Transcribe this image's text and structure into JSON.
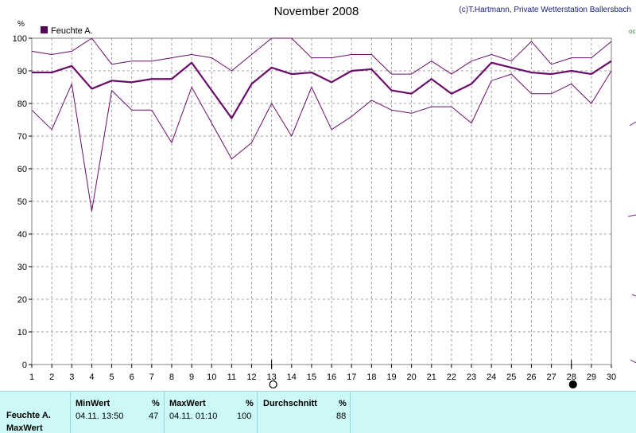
{
  "header": {
    "title": "November 2008",
    "copyright": "(c)T.Hartmann, Private Wetterstation Ballersbach"
  },
  "colors": {
    "series": "#6a0d6a",
    "legend_swatch": "#5a005a",
    "grid": "#a0a0a0",
    "panel": "#ccf8f8"
  },
  "chart_data": {
    "type": "line",
    "title": "November 2008",
    "ylabel": "%",
    "ylim": [
      0,
      100
    ],
    "yticks": [
      0,
      10,
      20,
      30,
      40,
      50,
      60,
      70,
      80,
      90,
      100
    ],
    "xlim": [
      1,
      30
    ],
    "x": [
      1,
      2,
      3,
      4,
      5,
      6,
      7,
      8,
      9,
      10,
      11,
      12,
      13,
      14,
      15,
      16,
      17,
      18,
      19,
      20,
      21,
      22,
      23,
      24,
      25,
      26,
      27,
      28,
      29,
      30
    ],
    "legend": "Feuchte A.",
    "legend_position": "top-left",
    "grid": true,
    "series": [
      {
        "role": "average",
        "values": [
          89.5,
          89.5,
          91.5,
          84.5,
          87,
          86.5,
          87.5,
          87.5,
          92.5,
          84,
          75.5,
          86,
          91,
          89,
          89.5,
          86.5,
          90,
          90.5,
          84,
          83,
          87.5,
          83,
          86,
          92.5,
          91,
          89.5,
          89,
          90,
          89,
          93
        ]
      },
      {
        "role": "max",
        "values": [
          96,
          95,
          96,
          100,
          92,
          93,
          93,
          94,
          95,
          94,
          90,
          95,
          100,
          100,
          94,
          94,
          95,
          95,
          89,
          89,
          93,
          89,
          93,
          95,
          93,
          99,
          92,
          94,
          94,
          99
        ]
      },
      {
        "role": "min",
        "values": [
          78,
          72,
          86,
          47,
          84,
          78,
          78,
          68,
          85,
          74,
          63,
          68,
          80,
          70,
          85,
          72,
          76,
          81,
          78,
          77,
          79,
          79,
          74,
          87,
          89,
          83,
          83,
          86,
          80,
          90
        ]
      }
    ],
    "moon_markers": [
      {
        "day": 13,
        "phase": "full"
      },
      {
        "day": 28,
        "phase": "new"
      }
    ]
  },
  "stats": {
    "row_label": "Feuchte A.",
    "row_sub": "MaxWert",
    "min": {
      "header": "MinWert",
      "unit": "%",
      "time": "04.11.  13:50",
      "value": "47"
    },
    "max": {
      "header": "MaxWert",
      "unit": "%",
      "time": "04.11.  01:10",
      "value": "100"
    },
    "avg": {
      "header": "Durchschnitt",
      "unit": "%",
      "value": "88"
    }
  }
}
